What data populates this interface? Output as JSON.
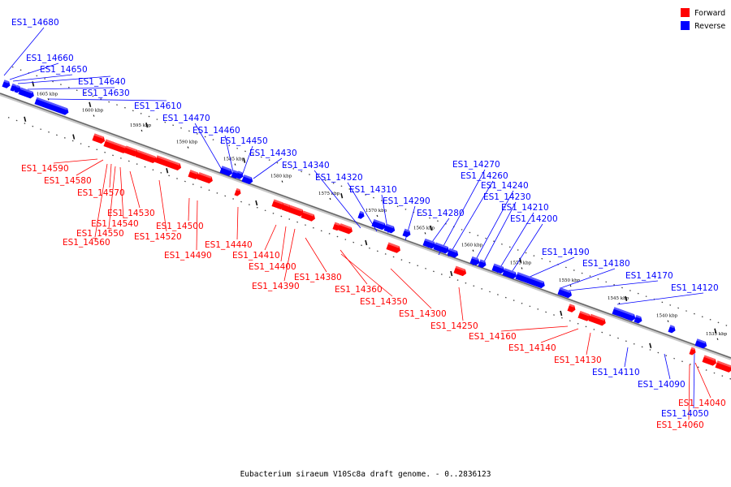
{
  "caption": "Eubacterium siraeum V10Sc8a draft genome. - 0..2836123",
  "legend": [
    {
      "label": "Forward",
      "color": "#ff0000"
    },
    {
      "label": "Reverse",
      "color": "#0000ff"
    }
  ],
  "colors": {
    "forward": "#ff0000",
    "reverse": "#0000ff",
    "backbone": "#888888"
  },
  "ticks": [
    "1605 kbp",
    "1600 kbp",
    "1595 kbp",
    "1590 kbp",
    "1585 kbp",
    "1580 kbp",
    "1575 kbp",
    "1570 kbp",
    "1565 kbp",
    "1560 kbp",
    "1555 kbp",
    "1550 kbp",
    "1545 kbp",
    "1540 kbp",
    "1535 kbp"
  ],
  "reverse_labels": [
    "ES1_14680",
    "ES1_14660",
    "ES1_14650",
    "ES1_14640",
    "ES1_14630",
    "ES1_14610",
    "ES1_14470",
    "ES1_14460",
    "ES1_14450",
    "ES1_14430",
    "ES1_14340",
    "ES1_14320",
    "ES1_14310",
    "ES1_14290",
    "ES1_14280",
    "ES1_14270",
    "ES1_14260",
    "ES1_14240",
    "ES1_14230",
    "ES1_14210",
    "ES1_14200",
    "ES1_14190",
    "ES1_14180",
    "ES1_14170",
    "ES1_14120",
    "ES1_14110",
    "ES1_14090",
    "ES1_14050"
  ],
  "forward_labels": [
    "ES1_14590",
    "ES1_14580",
    "ES1_14570",
    "ES1_14530",
    "ES1_14540",
    "ES1_14550",
    "ES1_14560",
    "ES1_14520",
    "ES1_14500",
    "ES1_14490",
    "ES1_14440",
    "ES1_14410",
    "ES1_14400",
    "ES1_14390",
    "ES1_14380",
    "ES1_14360",
    "ES1_14350",
    "ES1_14300",
    "ES1_14250",
    "ES1_14160",
    "ES1_14140",
    "ES1_14130",
    "ES1_14040",
    "ES1_14060"
  ]
}
